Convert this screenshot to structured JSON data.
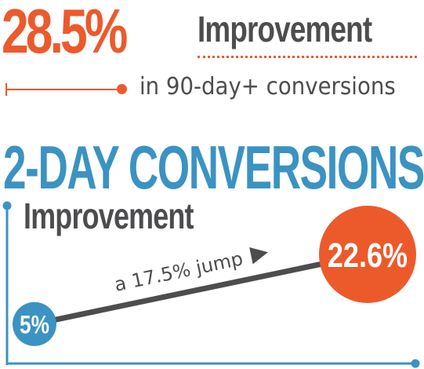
{
  "headline": {
    "stat": "28.5%",
    "label": "Improvement",
    "subtext": "in 90-day+ conversions"
  },
  "section": {
    "title": "2-DAY CONVERSIONS",
    "subtitle": "Improvement"
  },
  "chart_data": {
    "type": "line",
    "title": "2-DAY CONVERSIONS",
    "subtitle": "Improvement",
    "points": [
      {
        "label": "5%",
        "value": 5
      },
      {
        "label": "22.6%",
        "value": 22.6
      }
    ],
    "annotation": "a 17.5% jump",
    "ylim": [
      0,
      25
    ],
    "grid": false
  },
  "colors": {
    "orange": "#ec5a2c",
    "blue": "#3a93c2",
    "gray": "#4d4d4f"
  }
}
